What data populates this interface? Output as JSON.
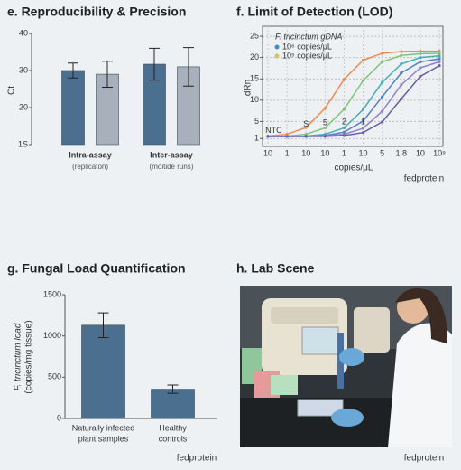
{
  "chart_data": [
    {
      "type": "bar",
      "title": "e. Reproducibility & Precision",
      "ylabel": "Ct",
      "categories": [
        "Intra-assay",
        "Inter-assay"
      ],
      "category_notes": [
        "(replicaton)",
        "(moitide runs)"
      ],
      "series": [
        {
          "color": "#4b6f8f",
          "values": [
            30,
            31.7
          ],
          "errors": [
            2,
            4.3
          ]
        },
        {
          "color": "#a8b1bb",
          "values": [
            29,
            31
          ],
          "errors": [
            3.5,
            5.2
          ]
        }
      ],
      "ylim": [
        10,
        40
      ],
      "yticks": [
        {
          "value": 10,
          "label": "1S"
        },
        20,
        30,
        40
      ],
      "grid": false
    },
    {
      "type": "line",
      "title": "f. Limit of Detection (LOD)",
      "ylabel": "dRn",
      "xlabel": "copies/μL",
      "credit": "fedprotein",
      "x": [
        0,
        1,
        2,
        3,
        4,
        5,
        6,
        7,
        8,
        9
      ],
      "series": [
        {
          "color": "#f08a4b",
          "values": [
            1.6,
            2.0,
            3.6,
            8.1,
            14.9,
            19.4,
            21.0,
            21.4,
            21.5,
            21.5
          ]
        },
        {
          "color": "#7cc576",
          "values": [
            1.5,
            1.6,
            2.0,
            3.5,
            7.9,
            14.6,
            19.0,
            20.5,
            20.9,
            21.0
          ]
        },
        {
          "color": "#3fb0b5",
          "values": [
            1.5,
            1.5,
            1.6,
            2.0,
            3.5,
            7.8,
            14.2,
            18.5,
            20.0,
            20.4
          ]
        },
        {
          "color": "#4f7fc9",
          "values": [
            1.5,
            1.5,
            1.5,
            1.7,
            2.5,
            5.1,
            10.8,
            16.4,
            19.0,
            19.7
          ]
        },
        {
          "color": "#8f7fd0",
          "values": [
            1.5,
            1.5,
            1.5,
            1.6,
            2.0,
            3.4,
            7.4,
            13.6,
            17.6,
            19.0
          ]
        },
        {
          "color": "#6a5aa8",
          "values": [
            1.5,
            1.5,
            1.5,
            1.5,
            1.7,
            2.4,
            4.9,
            10.3,
            15.6,
            18.1
          ]
        }
      ],
      "legend": {
        "title": "F. tricinctum gDNA",
        "entries": [
          {
            "label": "10⁶ copies/μL",
            "color": "#3f8fbf"
          },
          {
            "label": "10⁵ copies/μL",
            "color": "#c9c95a"
          }
        ]
      },
      "annotations": [
        "NTC",
        "S",
        "5",
        "2",
        "1"
      ],
      "xlim": [
        0,
        9
      ],
      "xticks": [
        {
          "value": 0,
          "label": "10"
        },
        1,
        {
          "value": 2,
          "label": "10"
        },
        {
          "value": 3,
          "label": "10"
        },
        {
          "value": 4,
          "label": "1"
        },
        {
          "value": 5,
          "label": "10"
        },
        {
          "value": 6,
          "label": "5"
        },
        {
          "value": 7,
          "label": "1.8"
        },
        {
          "value": 8,
          "label": "10"
        },
        {
          "value": 9,
          "label": "10⁹"
        }
      ],
      "ylim": [
        0,
        26.5
      ],
      "yticks": [
        1,
        5,
        10,
        15,
        20,
        25
      ],
      "grid": true
    },
    {
      "type": "bar",
      "title": "g. Fungal Load Quantification",
      "ylabel": [
        "F. tricinctum load",
        "(copies/mg tissue)"
      ],
      "credit": "fedprotein",
      "categories": [
        [
          "Naturally infected",
          "plant samples"
        ],
        [
          "Healthy",
          "controls"
        ]
      ],
      "series": [
        {
          "color": "#4b6f8f",
          "values": [
            1130,
            355
          ],
          "errors": [
            150,
            50
          ]
        }
      ],
      "ylim": [
        0,
        1500
      ],
      "yticks": [
        0,
        500,
        1000,
        1500
      ],
      "grid": false
    }
  ],
  "lab_scene": {
    "title": "h. Lab Scene",
    "credit": "fedprotein"
  }
}
